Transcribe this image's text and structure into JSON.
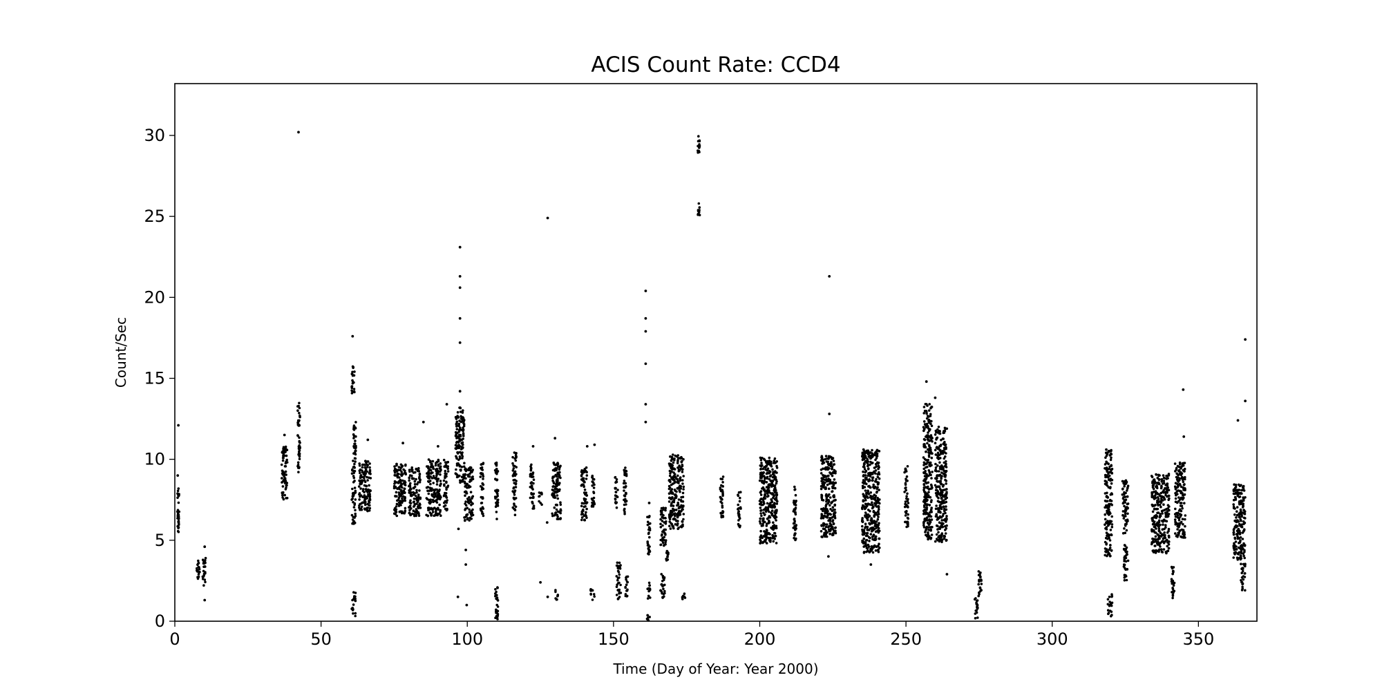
{
  "chart_data": {
    "type": "scatter",
    "title": "ACIS Count Rate: CCD4",
    "xlabel": "Time (Day of Year: Year 2000)",
    "ylabel": "Count/Sec",
    "xlim": [
      0,
      370
    ],
    "ylim": [
      0,
      33.2
    ],
    "xticks": [
      0,
      50,
      100,
      150,
      200,
      250,
      300,
      350
    ],
    "yticks": [
      0,
      5,
      10,
      15,
      20,
      25,
      30
    ],
    "grid": false,
    "legend": "none",
    "marker_color": "#000000",
    "dense_segments": [
      {
        "x": [
          0.8,
          1.5
        ],
        "y": [
          5.5,
          8.2
        ]
      },
      {
        "x": [
          7.5,
          8.5
        ],
        "y": [
          2.3,
          3.8
        ]
      },
      {
        "x": [
          9.5,
          10.8
        ],
        "y": [
          2.2,
          3.9
        ]
      },
      {
        "x": [
          36.5,
          38.5
        ],
        "y": [
          7.5,
          10.8
        ]
      },
      {
        "x": [
          42,
          42.8
        ],
        "y": [
          9.2,
          11.5
        ]
      },
      {
        "x": [
          42,
          42.8
        ],
        "y": [
          12,
          13.5
        ]
      },
      {
        "x": [
          60.5,
          61.5
        ],
        "y": [
          14,
          15.8
        ]
      },
      {
        "x": [
          60.5,
          61.8
        ],
        "y": [
          6,
          10
        ]
      },
      {
        "x": [
          61,
          62
        ],
        "y": [
          10,
          12.3
        ]
      },
      {
        "x": [
          60.5,
          61.8
        ],
        "y": [
          0.3,
          1.8
        ]
      },
      {
        "x": [
          63,
          67
        ],
        "y": [
          6.8,
          10
        ]
      },
      {
        "x": [
          75,
          79
        ],
        "y": [
          6.5,
          9.8
        ]
      },
      {
        "x": [
          80,
          84
        ],
        "y": [
          6.5,
          9.5
        ]
      },
      {
        "x": [
          86,
          91
        ],
        "y": [
          6.5,
          10
        ]
      },
      {
        "x": [
          92,
          93.5
        ],
        "y": [
          6.8,
          10
        ]
      },
      {
        "x": [
          96,
          99
        ],
        "y": [
          8.5,
          13.2
        ]
      },
      {
        "x": [
          99,
          102
        ],
        "y": [
          6.2,
          9.5
        ]
      },
      {
        "x": [
          104.5,
          105.5
        ],
        "y": [
          6.5,
          9.8
        ]
      },
      {
        "x": [
          109.5,
          110.5
        ],
        "y": [
          6.3,
          9.8
        ]
      },
      {
        "x": [
          109.5,
          110.5
        ],
        "y": [
          0,
          2.3
        ]
      },
      {
        "x": [
          115.5,
          116.8
        ],
        "y": [
          6.5,
          10.5
        ]
      },
      {
        "x": [
          121.5,
          122.8
        ],
        "y": [
          6.8,
          9.8
        ]
      },
      {
        "x": [
          124.5,
          125.5
        ],
        "y": [
          7.2,
          8
        ]
      },
      {
        "x": [
          129,
          132
        ],
        "y": [
          6.3,
          9.8
        ]
      },
      {
        "x": [
          130,
          131
        ],
        "y": [
          1.3,
          2
        ]
      },
      {
        "x": [
          139,
          141
        ],
        "y": [
          6.2,
          9.5
        ]
      },
      {
        "x": [
          142.5,
          143.5
        ],
        "y": [
          6.8,
          9
        ]
      },
      {
        "x": [
          142,
          143.5
        ],
        "y": [
          1.3,
          2
        ]
      },
      {
        "x": [
          150.5,
          151.5
        ],
        "y": [
          7,
          9
        ]
      },
      {
        "x": [
          151,
          152.5
        ],
        "y": [
          1.3,
          3.7
        ]
      },
      {
        "x": [
          153.5,
          154.5
        ],
        "y": [
          6.5,
          9.5
        ]
      },
      {
        "x": [
          154,
          155
        ],
        "y": [
          1.5,
          2.8
        ]
      },
      {
        "x": [
          161.5,
          162.5
        ],
        "y": [
          4,
          6.5
        ]
      },
      {
        "x": [
          161.5,
          162.5
        ],
        "y": [
          0,
          0.5
        ]
      },
      {
        "x": [
          161.5,
          162.5
        ],
        "y": [
          1.4,
          2.4
        ]
      },
      {
        "x": [
          166,
          168
        ],
        "y": [
          4.6,
          7
        ]
      },
      {
        "x": [
          166,
          167.5
        ],
        "y": [
          1.4,
          3
        ]
      },
      {
        "x": [
          168,
          168.8
        ],
        "y": [
          3.5,
          4.6
        ]
      },
      {
        "x": [
          169,
          174
        ],
        "y": [
          5.7,
          10.3
        ]
      },
      {
        "x": [
          173.5,
          174.5
        ],
        "y": [
          1.3,
          1.7
        ]
      },
      {
        "x": [
          178.8,
          179.5
        ],
        "y": [
          25,
          25.8
        ]
      },
      {
        "x": [
          178.8,
          179.5
        ],
        "y": [
          28.8,
          30
        ]
      },
      {
        "x": [
          186.5,
          187.5
        ],
        "y": [
          6.3,
          9.1
        ]
      },
      {
        "x": [
          192.5,
          193.5
        ],
        "y": [
          5.8,
          8
        ]
      },
      {
        "x": [
          200,
          206
        ],
        "y": [
          4.8,
          10.1
        ]
      },
      {
        "x": [
          211.5,
          212.5
        ],
        "y": [
          5,
          8.3
        ]
      },
      {
        "x": [
          221,
          226
        ],
        "y": [
          5.2,
          10.2
        ]
      },
      {
        "x": [
          235,
          241
        ],
        "y": [
          4.2,
          10.6
        ]
      },
      {
        "x": [
          249.5,
          250.8
        ],
        "y": [
          5.8,
          9.6
        ]
      },
      {
        "x": [
          256,
          259
        ],
        "y": [
          5,
          13.5
        ]
      },
      {
        "x": [
          260,
          264
        ],
        "y": [
          4.8,
          12
        ]
      },
      {
        "x": [
          273.5,
          274.5
        ],
        "y": [
          0,
          1.5
        ]
      },
      {
        "x": [
          274.8,
          275.8
        ],
        "y": [
          1.5,
          3.3
        ]
      },
      {
        "x": [
          318,
          320.5
        ],
        "y": [
          4,
          10.6
        ]
      },
      {
        "x": [
          319,
          320.5
        ],
        "y": [
          0.3,
          1.7
        ]
      },
      {
        "x": [
          324.5,
          326
        ],
        "y": [
          2.4,
          4.7
        ]
      },
      {
        "x": [
          324,
          326
        ],
        "y": [
          5.4,
          8.7
        ]
      },
      {
        "x": [
          334,
          340
        ],
        "y": [
          4.2,
          9.1
        ]
      },
      {
        "x": [
          340.8,
          341.8
        ],
        "y": [
          1.4,
          3.5
        ]
      },
      {
        "x": [
          342,
          345.5
        ],
        "y": [
          5.1,
          9.8
        ]
      },
      {
        "x": [
          362,
          366
        ],
        "y": [
          3.8,
          8.5
        ]
      },
      {
        "x": [
          364.5,
          366
        ],
        "y": [
          1.9,
          3.7
        ]
      }
    ],
    "outliers": [
      [
        1.2,
        12.1
      ],
      [
        1,
        9
      ],
      [
        10.2,
        4.6
      ],
      [
        10.2,
        1.3
      ],
      [
        37.5,
        11.5
      ],
      [
        42.3,
        30.2
      ],
      [
        60.8,
        17.6
      ],
      [
        66,
        11.2
      ],
      [
        78,
        11
      ],
      [
        85,
        12.3
      ],
      [
        90,
        10.8
      ],
      [
        93,
        13.4
      ],
      [
        97.5,
        14.2
      ],
      [
        97.5,
        17.2
      ],
      [
        97.5,
        18.7
      ],
      [
        97.5,
        20.6
      ],
      [
        97.5,
        21.3
      ],
      [
        97.5,
        23.1
      ],
      [
        97,
        5.7
      ],
      [
        99.5,
        4.4
      ],
      [
        99.5,
        3.5
      ],
      [
        99.8,
        1
      ],
      [
        96.8,
        1.5
      ],
      [
        122.5,
        10.8
      ],
      [
        125,
        2.4
      ],
      [
        127.5,
        24.9
      ],
      [
        127.3,
        6.1
      ],
      [
        127.5,
        1.5
      ],
      [
        130,
        11.3
      ],
      [
        141,
        10.8
      ],
      [
        143.5,
        10.9
      ],
      [
        161,
        12.3
      ],
      [
        161,
        13.4
      ],
      [
        161,
        15.9
      ],
      [
        161,
        17.9
      ],
      [
        161,
        18.7
      ],
      [
        161,
        20.4
      ],
      [
        162.2,
        7.3
      ],
      [
        223.8,
        12.8
      ],
      [
        223.8,
        21.3
      ],
      [
        223.5,
        4
      ],
      [
        235.5,
        10.6
      ],
      [
        238,
        3.5
      ],
      [
        257,
        14.8
      ],
      [
        260,
        13.8
      ],
      [
        264,
        2.9
      ],
      [
        318.5,
        10.6
      ],
      [
        345,
        11.4
      ],
      [
        344.8,
        14.3
      ],
      [
        363.5,
        12.4
      ],
      [
        366,
        13.6
      ],
      [
        366,
        17.4
      ]
    ]
  }
}
